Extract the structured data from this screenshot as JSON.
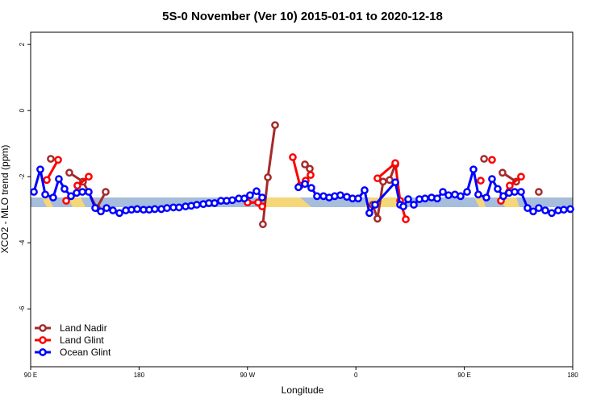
{
  "chart_data": {
    "type": "line",
    "title": "5S-0 November (Ver 10)   2015-01-01 to 2020-12-18",
    "x_label": "Longitude",
    "y_label": "XCO2 - MLO trend (ppm)",
    "xlim": [
      90,
      540
    ],
    "ylim": [
      -7.75,
      2.37
    ],
    "xticks": [
      {
        "value": 90,
        "label": "90 E"
      },
      180,
      {
        "value": 270,
        "label": "90 W"
      },
      {
        "value": 360,
        "label": "0"
      },
      {
        "value": 450,
        "label": "90 E"
      },
      {
        "value": 540,
        "label": "180"
      }
    ],
    "yticks": [
      -6,
      -4,
      -2,
      0,
      2
    ],
    "legend": "bottom-left",
    "series": [
      {
        "name": "Land Nadir",
        "color": "#a52a2a",
        "x": [
          106.7,
          null,
          122.1,
          133.5,
          144.9,
          152.3,
          null,
          282.8,
          286.9,
          292.9,
          null,
          317.7,
          321.7,
          null,
          373.9,
          377.9,
          382.6,
          388.0,
          392.7,
          null,
          466.4,
          null,
          481.7,
          493.1,
          null,
          511.8
        ],
        "values": [
          -1.46,
          null,
          -1.88,
          -2.15,
          -2.95,
          -2.46,
          null,
          -3.44,
          -2.02,
          -0.44,
          null,
          -1.63,
          -1.76,
          null,
          -2.85,
          -3.27,
          -2.15,
          -2.1,
          -1.63,
          null,
          -1.46,
          null,
          -1.88,
          -2.15,
          null,
          -2.46
        ]
      },
      {
        "name": "Land Glint",
        "color": "#ff0000",
        "x": [
          103.4,
          112.8,
          null,
          119.5,
          null,
          128.8,
          138.2,
          null,
          270.1,
          278.8,
          282.2,
          null,
          307.6,
          313.6,
          318.3,
          322.4,
          null,
          377.9,
          392.7,
          396.7,
          401.4,
          null,
          463.6,
          null,
          473.0,
          null,
          480.4,
          487.7,
          497.1
        ],
        "values": [
          -2.1,
          -1.49,
          null,
          -2.73,
          null,
          -2.27,
          -2.0,
          null,
          -2.78,
          -2.78,
          -2.9,
          null,
          -1.41,
          -2.27,
          -2.12,
          -1.95,
          null,
          -2.05,
          -1.59,
          -2.73,
          -3.29,
          null,
          -2.12,
          null,
          -1.49,
          null,
          -2.73,
          -2.27,
          -2.0
        ]
      },
      {
        "name": "Ocean Glint",
        "color": "#0000ff",
        "x": [
          92.7,
          98.0,
          102.1,
          108.7,
          113.4,
          118.1,
          123.5,
          128.2,
          132.9,
          138.2,
          143.6,
          148.3,
          153.0,
          158.3,
          163.7,
          169.0,
          173.7,
          178.4,
          183.7,
          188.4,
          193.1,
          198.5,
          203.2,
          208.5,
          213.2,
          218.6,
          223.3,
          227.9,
          233.3,
          238.0,
          242.7,
          248.0,
          252.7,
          257.4,
          262.8,
          267.4,
          272.1,
          277.5,
          282.2,
          null,
          312.3,
          317.7,
          323.0,
          327.7,
          333.1,
          337.8,
          342.4,
          347.1,
          352.5,
          357.2,
          361.9,
          367.2,
          371.2,
          375.9,
          392.7,
          396.7,
          399.4,
          403.4,
          408.1,
          412.7,
          417.4,
          422.8,
          427.5,
          432.2,
          436.9,
          442.2,
          446.9,
          452.3,
          457.6,
          461.6,
          468.3,
          473.0,
          477.7,
          482.4,
          487.1,
          491.8,
          497.1,
          502.5,
          507.2,
          511.8,
          517.2,
          522.6,
          527.9,
          532.6,
          538.0
        ],
        "values": [
          -2.46,
          -1.78,
          -2.54,
          -2.63,
          -2.07,
          -2.37,
          -2.59,
          -2.49,
          -2.46,
          -2.46,
          -2.95,
          -3.05,
          -2.95,
          -3.02,
          -3.1,
          -3.02,
          -3.0,
          -2.98,
          -3.0,
          -3.0,
          -2.98,
          -2.98,
          -2.95,
          -2.93,
          -2.93,
          -2.9,
          -2.88,
          -2.85,
          -2.83,
          -2.8,
          -2.8,
          -2.73,
          -2.73,
          -2.71,
          -2.66,
          -2.66,
          -2.56,
          -2.44,
          -2.63,
          null,
          -2.32,
          -2.22,
          -2.34,
          -2.59,
          -2.59,
          -2.63,
          -2.59,
          -2.56,
          -2.61,
          -2.66,
          -2.66,
          -2.41,
          -3.1,
          -2.85,
          -2.17,
          -2.85,
          -2.9,
          -2.68,
          -2.85,
          -2.68,
          -2.66,
          -2.63,
          -2.66,
          -2.46,
          -2.56,
          -2.54,
          -2.59,
          -2.46,
          -1.78,
          -2.54,
          -2.63,
          -2.07,
          -2.37,
          -2.59,
          -2.49,
          -2.46,
          -2.46,
          -2.95,
          -3.05,
          -2.95,
          -3.02,
          -3.1,
          -3.02,
          -3.0,
          -2.98
        ]
      }
    ]
  }
}
